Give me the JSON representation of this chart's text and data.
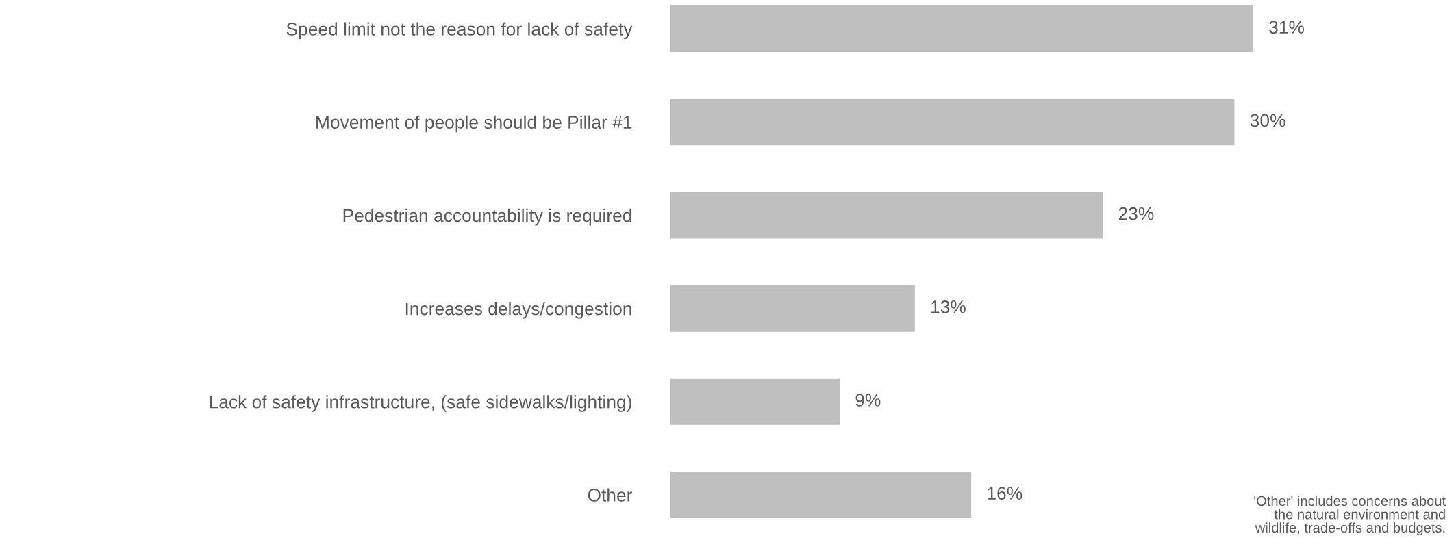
{
  "chart_data": {
    "type": "bar",
    "orientation": "horizontal",
    "categories": [
      "Speed limit not the reason for lack of safety",
      "Movement of people should be Pillar #1",
      "Pedestrian accountability is required",
      "Increases delays/congestion",
      "Lack of safety infrastructure, (safe sidewalks/lighting)",
      "Other"
    ],
    "values": [
      31,
      30,
      23,
      13,
      9,
      16
    ],
    "value_labels": [
      "31%",
      "30%",
      "23%",
      "13%",
      "9%",
      "16%"
    ],
    "color": "#bfbfbf",
    "grid": false,
    "legend": false,
    "annotations": [
      " 'Other' includes concerns about\nthe natural environment and\nwildlife, trade-offs and budgets."
    ]
  }
}
